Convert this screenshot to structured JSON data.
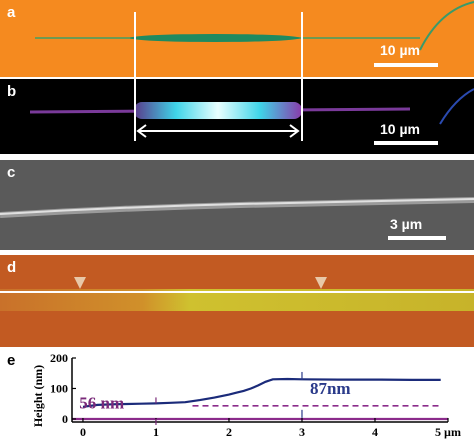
{
  "panels": {
    "a": {
      "label": "a",
      "scale_bar": "10 µm",
      "background": "#f58a1f"
    },
    "b": {
      "label": "b",
      "scale_bar": "10 µm",
      "length_annotation": "~25 µm",
      "background": "#000000"
    },
    "c": {
      "label": "c",
      "scale_bar": "3 µm",
      "background": "#5a5a5a"
    },
    "d": {
      "label": "d",
      "background": "#c25a22"
    },
    "e": {
      "label": "e",
      "annotation_low": "56 nm",
      "annotation_high": "87nm",
      "colors": {
        "profile": "#1b2b7a",
        "baseline": "#8b2b8b",
        "annotation_low": "#7a2a7a",
        "annotation_high": "#2a3a8a"
      }
    }
  },
  "chart_data": {
    "type": "line",
    "title": "",
    "xlabel": "",
    "x_unit": "µm",
    "ylabel": "Height (nm)",
    "xlim": [
      -0.15,
      5
    ],
    "ylim": [
      -10,
      200
    ],
    "x_ticks": [
      0,
      1,
      2,
      3,
      4,
      5
    ],
    "y_ticks": [
      0,
      100,
      200
    ],
    "series": [
      {
        "name": "",
        "style": "solid",
        "color": "#1b2b7a",
        "x": [
          0,
          0.2,
          0.4,
          0.6,
          0.8,
          1.0,
          1.2,
          1.4,
          1.6,
          1.8,
          2.0,
          2.1,
          2.2,
          2.3,
          2.4,
          2.5,
          2.6,
          2.8,
          3.0,
          3.5,
          4.0,
          4.5,
          4.9
        ],
        "y": [
          40,
          46,
          48,
          49,
          50,
          51,
          53,
          55,
          62,
          70,
          80,
          86,
          92,
          100,
          110,
          122,
          130,
          131,
          130,
          129,
          129,
          128,
          128
        ]
      },
      {
        "name": "",
        "style": "dashed",
        "color": "#8b2b8b",
        "x": [
          1.5,
          4.9
        ],
        "y": [
          43,
          43
        ]
      },
      {
        "name": "",
        "style": "solid",
        "color": "#8b2b8b",
        "x": [
          -0.15,
          5.0
        ],
        "y": [
          0,
          0
        ]
      }
    ]
  }
}
